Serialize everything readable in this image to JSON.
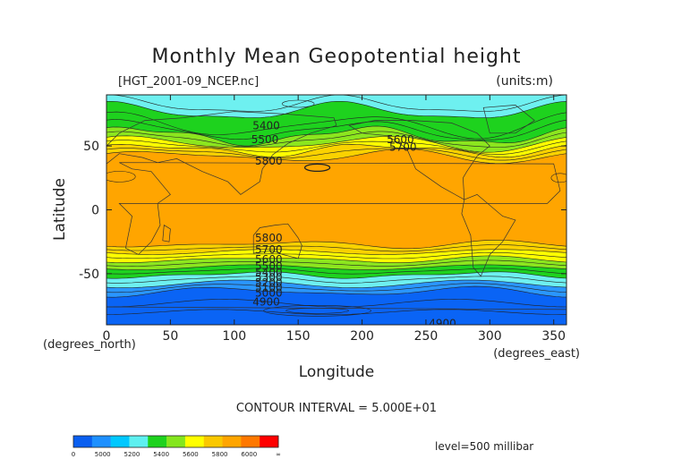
{
  "chart_data": {
    "type": "heatmap",
    "title": "Monthly Mean Geopotential height",
    "file_label": "[HGT_2001-09_NCEP.nc]",
    "units_label": "(units:m)",
    "xlabel": "Longitude",
    "ylabel": "Latitude",
    "x_unit_label": "(degrees_east)",
    "y_unit_label": "(degrees_north)",
    "xlim": [
      0,
      360
    ],
    "ylim": [
      -90,
      90
    ],
    "x_ticks": [
      0,
      50,
      100,
      150,
      200,
      250,
      300,
      350
    ],
    "y_ticks": [
      50,
      0,
      -50
    ],
    "contour_interval_text": "CONTOUR INTERVAL = 5.000E+01",
    "level_text": "level=500 millibar",
    "contour_labels": [
      {
        "text": "5400",
        "lon": 125,
        "lat": 66
      },
      {
        "text": "5500",
        "lon": 124,
        "lat": 55
      },
      {
        "text": "5600",
        "lon": 230,
        "lat": 55
      },
      {
        "text": "5700",
        "lon": 232,
        "lat": 49
      },
      {
        "text": "5800",
        "lon": 127,
        "lat": 38
      },
      {
        "text": "5800",
        "lon": 127,
        "lat": -22
      },
      {
        "text": "5700",
        "lon": 127,
        "lat": -31
      },
      {
        "text": "5600",
        "lon": 127,
        "lat": -39
      },
      {
        "text": "5500",
        "lon": 127,
        "lat": -44
      },
      {
        "text": "5400",
        "lon": 127,
        "lat": -49
      },
      {
        "text": "5300",
        "lon": 127,
        "lat": -53
      },
      {
        "text": "5200",
        "lon": 127,
        "lat": -57
      },
      {
        "text": "5100",
        "lon": 127,
        "lat": -61
      },
      {
        "text": "5000",
        "lon": 127,
        "lat": -65
      },
      {
        "text": "4900",
        "lon": 125,
        "lat": -72
      },
      {
        "text": "4900",
        "lon": 263,
        "lat": -89
      }
    ],
    "colorbar": {
      "tick_labels": [
        "0",
        "5000",
        "5200",
        "5400",
        "5600",
        "5800",
        "6000",
        "∞"
      ],
      "colors": [
        "#0a5ff0",
        "#1e90ff",
        "#00c8ff",
        "#5ef0f0",
        "#1ed21e",
        "#84e61e",
        "#ffff00",
        "#fac800",
        "#ffa500",
        "#ff7800",
        "#ff0000"
      ]
    },
    "band_colors": {
      "blue": "#0a64f5",
      "mid_blue": "#2a96ff",
      "cyan": "#00dcff",
      "light_cyan": "#6ef0f0",
      "green": "#1ed21e",
      "light_green": "#8ce61e",
      "yellow": "#ffff00",
      "gold": "#fad200",
      "orange": "#ffa500"
    }
  }
}
